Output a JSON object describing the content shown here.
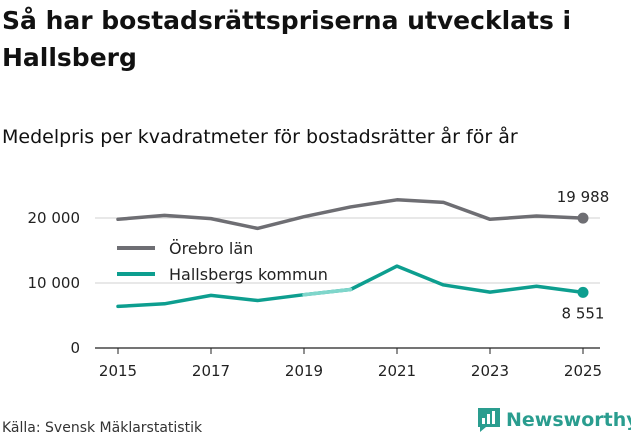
{
  "title": "Så har bostadsrättspriserna utvecklats i Hallsberg",
  "subtitle": "Medelpris per kvadratmeter för bostadsrätter år för år",
  "source": "Källa: Svensk Mäklarstatistik",
  "brand": {
    "name": "Newsworthy",
    "icon": "newsworthy-logo-icon",
    "color": "#2a9d8f"
  },
  "chart_data": {
    "type": "line",
    "x": [
      2015,
      2016,
      2017,
      2018,
      2019,
      2020,
      2021,
      2022,
      2023,
      2024,
      2025
    ],
    "xticks": [
      "2015",
      "2017",
      "2019",
      "2021",
      "2023",
      "2025"
    ],
    "yticks": [
      "0",
      "10 000",
      "20 000"
    ],
    "ytick_values": [
      0,
      10000,
      20000
    ],
    "ylim": [
      0,
      22000
    ],
    "series": [
      {
        "name": "Örebro län",
        "color": "#6e6e73",
        "values": [
          19800,
          20400,
          19900,
          18400,
          20200,
          21700,
          22800,
          22400,
          19800,
          20300,
          19988
        ],
        "end_label": "19 988"
      },
      {
        "name": "Hallsbergs kommun",
        "color": "#0d9e8f",
        "highlight_color": "#7fd6cb",
        "values": [
          6400,
          6800,
          8100,
          7300,
          8200,
          9000,
          12600,
          9700,
          8600,
          9500,
          8551
        ],
        "end_label": "8 551"
      }
    ],
    "legend": [
      "Örebro län",
      "Hallsbergs kommun"
    ]
  }
}
